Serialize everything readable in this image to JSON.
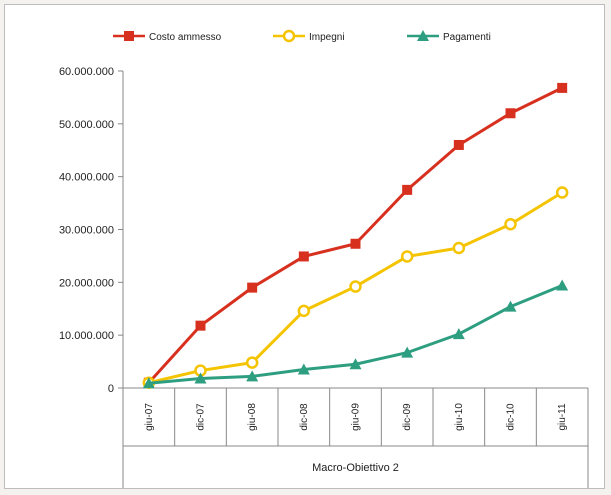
{
  "chart_data": {
    "type": "line",
    "categories": [
      "giu-07",
      "dic-07",
      "giu-08",
      "dic-08",
      "giu-09",
      "dic-09",
      "giu-10",
      "dic-10",
      "giu-11"
    ],
    "group_label": "Macro-Obiettivo 2",
    "ylim": [
      0,
      60000000
    ],
    "yticks": [
      0,
      10000000,
      20000000,
      30000000,
      40000000,
      50000000,
      60000000
    ],
    "ytick_labels": [
      "0",
      "10.000.000",
      "20.000.000",
      "30.000.000",
      "40.000.000",
      "50.000.000",
      "60.000.000"
    ],
    "grid": false,
    "legend_position": "top",
    "series": [
      {
        "name": "Costo ammesso",
        "color": "#d7301f",
        "marker": "square",
        "values": [
          1000000,
          11800000,
          19000000,
          24900000,
          27300000,
          37500000,
          46000000,
          52000000,
          56800000
        ]
      },
      {
        "name": "Impegni",
        "color": "#f5c400",
        "marker": "circle",
        "values": [
          1000000,
          3300000,
          4800000,
          14600000,
          19200000,
          24900000,
          26500000,
          31000000,
          37000000
        ]
      },
      {
        "name": "Pagamenti",
        "color": "#2e9e80",
        "marker": "triangle",
        "values": [
          900000,
          1800000,
          2200000,
          3500000,
          4500000,
          6700000,
          10200000,
          15400000,
          19400000
        ]
      }
    ]
  }
}
